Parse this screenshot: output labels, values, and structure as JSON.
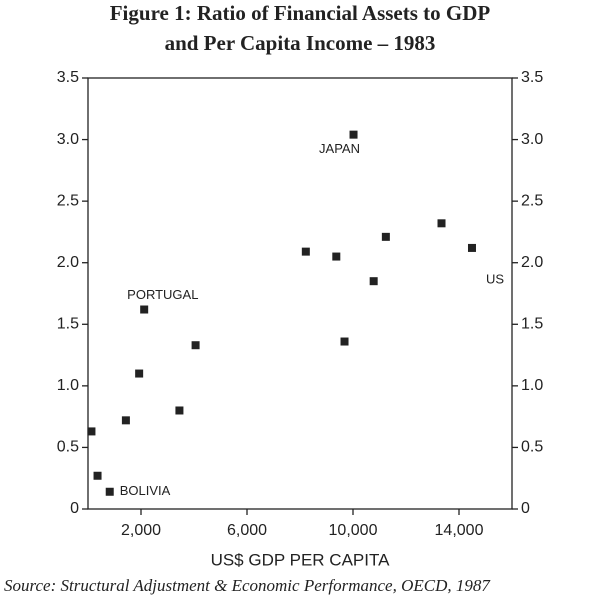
{
  "chart_data": {
    "type": "scatter",
    "title": [
      "Figure 1: Ratio of Financial Assets to GDP",
      "and Per Capita Income – 1983"
    ],
    "x_label": "US$ GDP PER CAPITA",
    "source": "Source: Structural Adjustment & Economic Performance, OECD, 1987",
    "x": [
      130,
      360,
      820,
      1430,
      1930,
      2120,
      3450,
      4060,
      8220,
      9370,
      9680,
      10020,
      10780,
      11240,
      13340,
      14490
    ],
    "values": [
      0.63,
      0.27,
      0.14,
      0.72,
      1.1,
      1.62,
      0.8,
      1.33,
      2.09,
      2.05,
      1.36,
      3.04,
      1.85,
      2.21,
      2.32,
      2.12
    ],
    "point_labels": [
      null,
      null,
      "BOLIVIA",
      null,
      null,
      "PORTUGAL",
      null,
      null,
      null,
      null,
      null,
      "JAPAN",
      null,
      null,
      null,
      "US"
    ],
    "color": "#222222",
    "xlim": [
      0,
      16000
    ],
    "xticks": [
      {
        "value": 2000,
        "label": "2,000"
      },
      {
        "value": 6000,
        "label": "6,000"
      },
      {
        "value": 10000,
        "label": "10,000"
      },
      {
        "value": 14000,
        "label": "14,000"
      }
    ],
    "ylim": [
      0,
      3.5
    ],
    "yticks": [
      0,
      0.5,
      {
        "value": 1,
        "label": "1.0"
      },
      1.5,
      {
        "value": 2,
        "label": "2.0"
      },
      2.5,
      {
        "value": 3,
        "label": "3.0"
      },
      3.5
    ],
    "grid": false
  }
}
